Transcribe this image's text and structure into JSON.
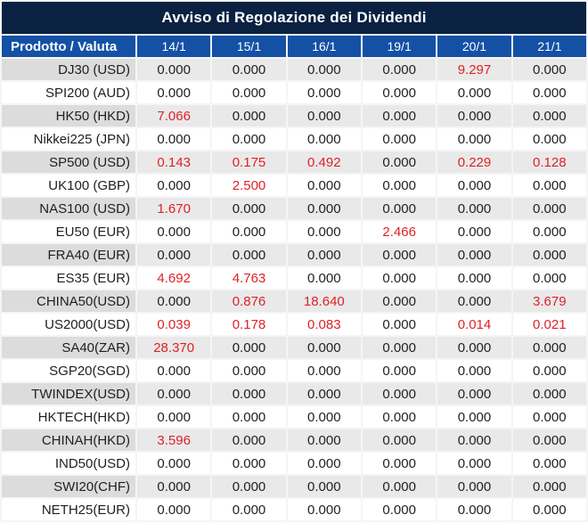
{
  "title": "Avviso di Regolazione dei Dividendi",
  "table": {
    "product_header": "Prodotto / Valuta",
    "date_columns": [
      "14/1",
      "15/1",
      "16/1",
      "19/1",
      "20/1",
      "21/1"
    ],
    "rows": [
      {
        "product": "DJ30 (USD)",
        "values": [
          "0.000",
          "0.000",
          "0.000",
          "0.000",
          "9.297",
          "0.000"
        ]
      },
      {
        "product": "SPI200 (AUD)",
        "values": [
          "0.000",
          "0.000",
          "0.000",
          "0.000",
          "0.000",
          "0.000"
        ]
      },
      {
        "product": "HK50 (HKD)",
        "values": [
          "7.066",
          "0.000",
          "0.000",
          "0.000",
          "0.000",
          "0.000"
        ]
      },
      {
        "product": "Nikkei225 (JPN)",
        "values": [
          "0.000",
          "0.000",
          "0.000",
          "0.000",
          "0.000",
          "0.000"
        ]
      },
      {
        "product": "SP500 (USD)",
        "values": [
          "0.143",
          "0.175",
          "0.492",
          "0.000",
          "0.229",
          "0.128"
        ]
      },
      {
        "product": "UK100 (GBP)",
        "values": [
          "0.000",
          "2.500",
          "0.000",
          "0.000",
          "0.000",
          "0.000"
        ]
      },
      {
        "product": "NAS100 (USD)",
        "values": [
          "1.670",
          "0.000",
          "0.000",
          "0.000",
          "0.000",
          "0.000"
        ]
      },
      {
        "product": "EU50 (EUR)",
        "values": [
          "0.000",
          "0.000",
          "0.000",
          "2.466",
          "0.000",
          "0.000"
        ]
      },
      {
        "product": "FRA40 (EUR)",
        "values": [
          "0.000",
          "0.000",
          "0.000",
          "0.000",
          "0.000",
          "0.000"
        ]
      },
      {
        "product": "ES35 (EUR)",
        "values": [
          "4.692",
          "4.763",
          "0.000",
          "0.000",
          "0.000",
          "0.000"
        ]
      },
      {
        "product": "CHINA50(USD)",
        "values": [
          "0.000",
          "0.876",
          "18.640",
          "0.000",
          "0.000",
          "3.679"
        ]
      },
      {
        "product": "US2000(USD)",
        "values": [
          "0.039",
          "0.178",
          "0.083",
          "0.000",
          "0.014",
          "0.021"
        ]
      },
      {
        "product": "SA40(ZAR)",
        "values": [
          "28.370",
          "0.000",
          "0.000",
          "0.000",
          "0.000",
          "0.000"
        ]
      },
      {
        "product": "SGP20(SGD)",
        "values": [
          "0.000",
          "0.000",
          "0.000",
          "0.000",
          "0.000",
          "0.000"
        ]
      },
      {
        "product": "TWINDEX(USD)",
        "values": [
          "0.000",
          "0.000",
          "0.000",
          "0.000",
          "0.000",
          "0.000"
        ]
      },
      {
        "product": "HKTECH(HKD)",
        "values": [
          "0.000",
          "0.000",
          "0.000",
          "0.000",
          "0.000",
          "0.000"
        ]
      },
      {
        "product": "CHINAH(HKD)",
        "values": [
          "3.596",
          "0.000",
          "0.000",
          "0.000",
          "0.000",
          "0.000"
        ]
      },
      {
        "product": "IND50(USD)",
        "values": [
          "0.000",
          "0.000",
          "0.000",
          "0.000",
          "0.000",
          "0.000"
        ]
      },
      {
        "product": "SWI20(CHF)",
        "values": [
          "0.000",
          "0.000",
          "0.000",
          "0.000",
          "0.000",
          "0.000"
        ]
      },
      {
        "product": "NETH25(EUR)",
        "values": [
          "0.000",
          "0.000",
          "0.000",
          "0.000",
          "0.000",
          "0.000"
        ]
      }
    ],
    "zero_value": "0.000"
  },
  "colors": {
    "title_bg": "#0a2142",
    "header_bg": "#1451a5",
    "row_gray_label": "#dcdcdc",
    "row_gray_value": "#e9e9e9",
    "value_red": "#e02126",
    "value_text": "#1f1f1f"
  }
}
